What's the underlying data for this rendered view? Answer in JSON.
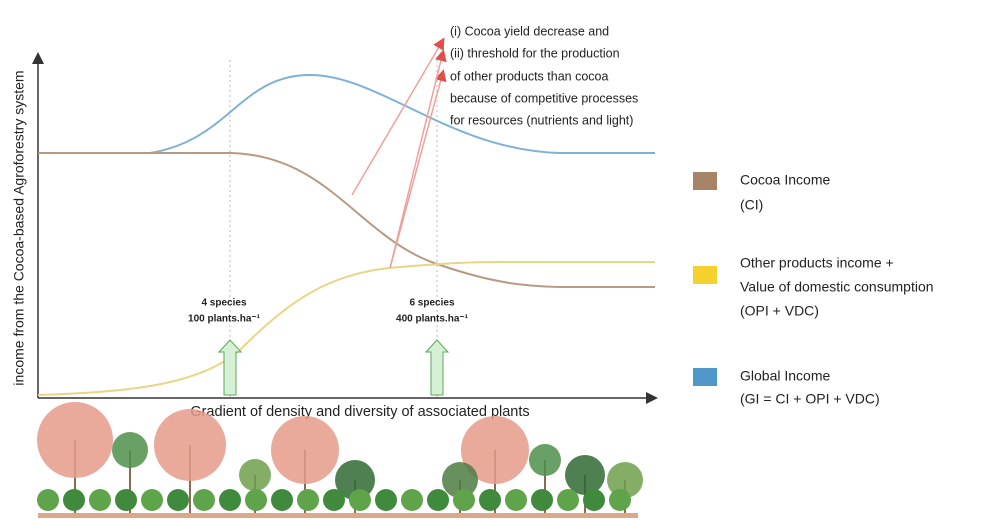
{
  "y_axis_label": "income from the Cocoa-based Agroforestry system",
  "x_axis_label": "Gradient of density and diversity of associated plants",
  "markers": [
    {
      "line1": "4 species",
      "line2": "100 plants.ha⁻¹"
    },
    {
      "line1": "6 species",
      "line2": "400 plants.ha⁻¹"
    }
  ],
  "annotation": [
    "(i)    Cocoa yield decrease and",
    "(ii) threshold for the production",
    "of other products than cocoa",
    "because of competitive processes",
    "for resources (nutrients and light)"
  ],
  "legend": [
    {
      "color": "#a88466",
      "line1": "Cocoa Income",
      "line2": "(CI)"
    },
    {
      "color": "#f5d130",
      "line1": "Other products income +",
      "line2": "Value of domestic consumption",
      "line3": "(OPI + VDC)"
    },
    {
      "color": "#4f97c9",
      "line1": "Global Income",
      "line2": "(GI = CI + OPI + VDC)"
    }
  ]
}
